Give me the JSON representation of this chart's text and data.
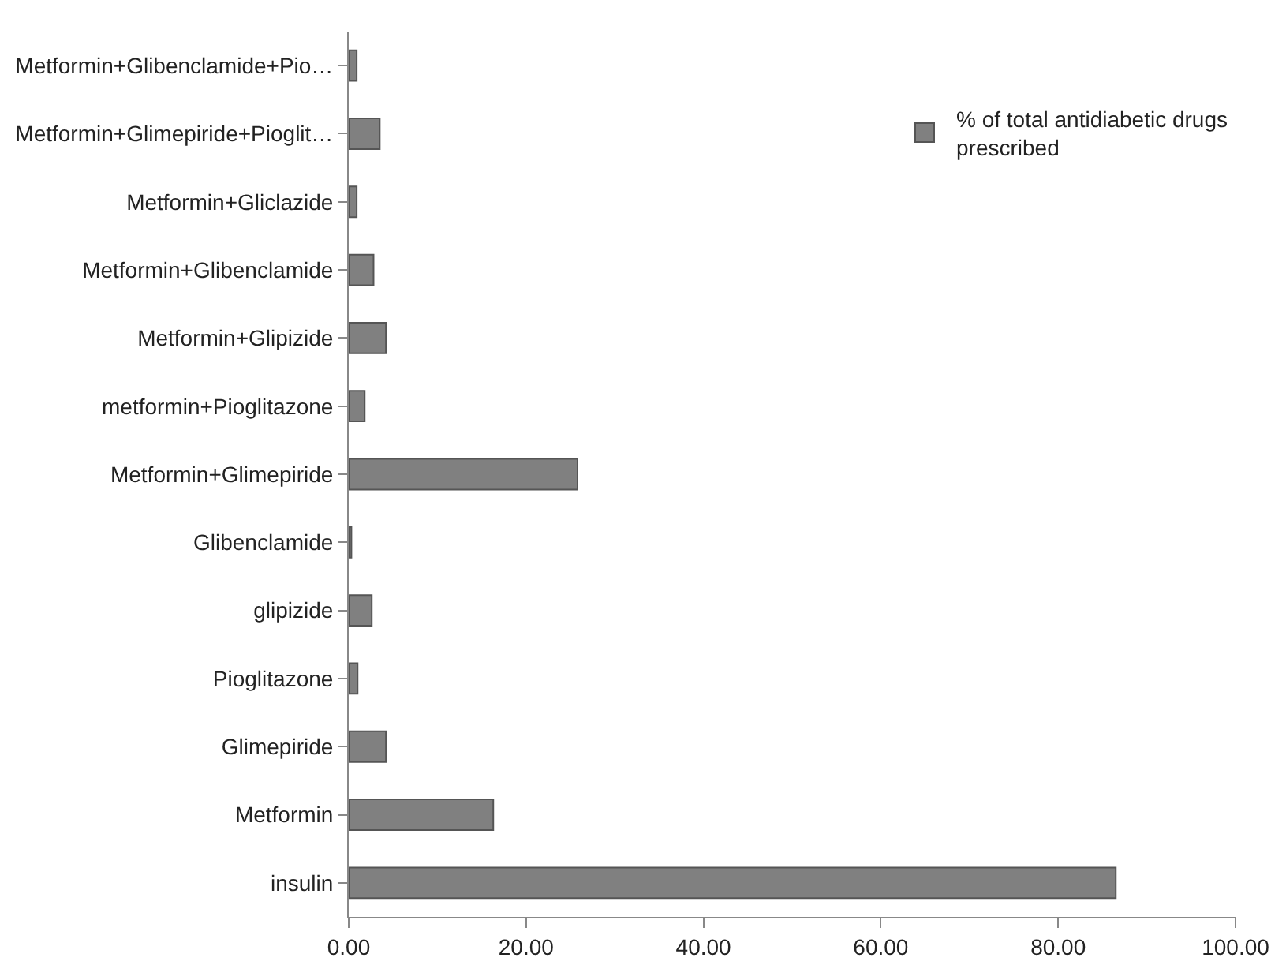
{
  "chart_data": {
    "type": "bar",
    "orientation": "horizontal",
    "categories": [
      "Metformin+Glibenclamide+Pio…",
      "Metformin+Glimepiride+Pioglit…",
      "Metformin+Gliclazide",
      "Metformin+Glibenclamide",
      "Metformin+Glipizide",
      "metformin+Pioglitazone",
      "Metformin+Glimepiride",
      "Glibenclamide",
      "glipizide",
      "Pioglitazone",
      "Glimepiride",
      "Metformin",
      "insulin"
    ],
    "series": [
      {
        "name": "% of total antidiabetic drugs prescribed",
        "color": "#808080",
        "values": [
          0.9,
          3.5,
          0.9,
          2.8,
          4.2,
          1.8,
          25.8,
          0.3,
          2.6,
          1.0,
          4.2,
          16.3,
          86.5
        ]
      }
    ],
    "xlim": [
      0,
      100
    ],
    "xticks": [
      {
        "value": 0,
        "label": "0.00"
      },
      {
        "value": 20,
        "label": "20.00"
      },
      {
        "value": 40,
        "label": "40.00"
      },
      {
        "value": 60,
        "label": "60.00"
      },
      {
        "value": 80,
        "label": "80.00"
      },
      {
        "value": 100,
        "label": "100.00"
      }
    ],
    "legend": "top right"
  }
}
